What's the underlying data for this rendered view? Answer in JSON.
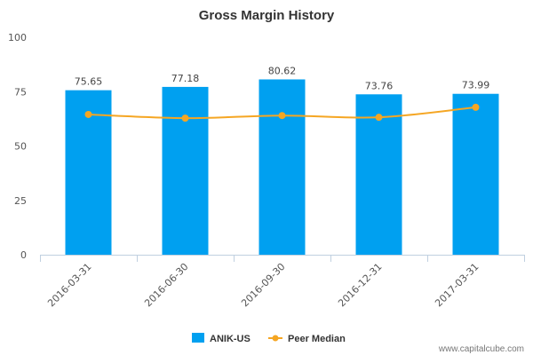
{
  "chart_data": {
    "type": "bar",
    "title": "Gross Margin History",
    "categories": [
      "2016-03-31",
      "2016-06-30",
      "2016-09-30",
      "2016-12-31",
      "2017-03-31"
    ],
    "series": [
      {
        "name": "ANIK-US",
        "kind": "bar",
        "color": "#00a0f0",
        "values": [
          75.65,
          77.18,
          80.62,
          73.76,
          73.99
        ],
        "labels": [
          "75.65",
          "77.18",
          "80.62",
          "73.76",
          "73.99"
        ]
      },
      {
        "name": "Peer Median",
        "kind": "line",
        "color": "#f5a623",
        "values": [
          64.5,
          62.8,
          64.0,
          63.2,
          67.8
        ]
      }
    ],
    "ylim": [
      0,
      100
    ],
    "yticks": [
      "0",
      "25",
      "50",
      "75",
      "100"
    ],
    "xlabel": "",
    "ylabel": "",
    "legend": {
      "position": "bottom-center"
    }
  },
  "watermark": "www.capitalcube.com"
}
